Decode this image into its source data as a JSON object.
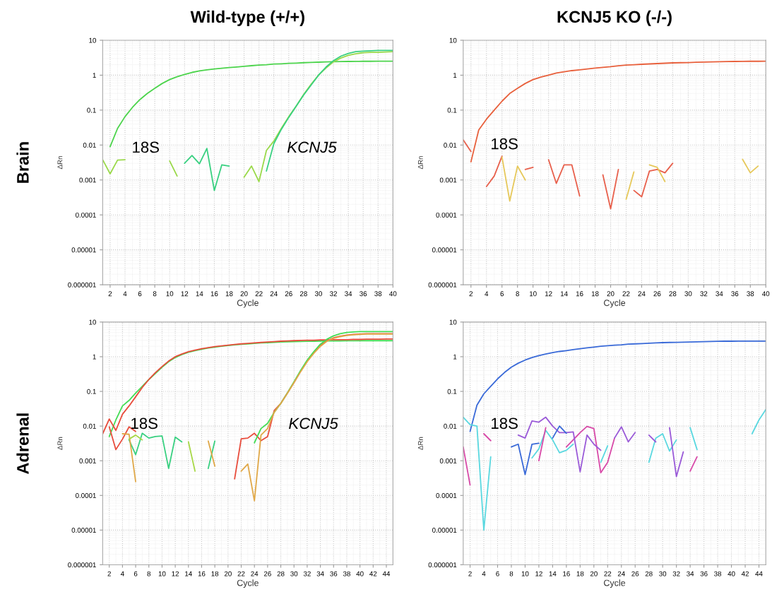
{
  "chart_data": [
    {
      "type": "line",
      "title": "Wild-type (+/+)",
      "xlabel": "Cycle",
      "ylabel": "ΔRn",
      "log": true,
      "grid": true,
      "xlim": [
        1,
        40
      ],
      "xticks": [
        2,
        4,
        6,
        8,
        10,
        12,
        14,
        16,
        18,
        20,
        22,
        24,
        26,
        28,
        30,
        32,
        34,
        36,
        38,
        40
      ],
      "ylim": [
        1e-06,
        10
      ],
      "yticks": [
        {
          "value": 1e-06,
          "label": "0.000001"
        },
        {
          "value": 1e-05,
          "label": "0.00001"
        },
        {
          "value": 0.0001,
          "label": "0.0001"
        },
        {
          "value": 0.001,
          "label": "0.001"
        },
        {
          "value": 0.01,
          "label": "0.01"
        },
        0.1,
        1,
        10
      ],
      "annotations": [
        "Brain",
        "18S",
        "KCNJ5"
      ],
      "series": [
        {
          "color": "#4cd44c",
          "x": [
            2,
            3,
            4,
            5,
            6,
            7,
            8,
            9,
            10,
            11,
            12,
            13,
            14,
            15,
            16,
            17,
            18,
            19,
            20,
            21,
            22,
            23,
            24,
            25,
            26,
            27,
            28,
            29,
            30,
            31,
            32,
            33,
            34,
            35,
            36,
            37,
            38,
            39,
            40
          ],
          "values": [
            0.009,
            0.03,
            0.065,
            0.12,
            0.2,
            0.3,
            0.42,
            0.58,
            0.75,
            0.9,
            1.05,
            1.2,
            1.32,
            1.42,
            1.5,
            1.58,
            1.65,
            1.72,
            1.8,
            1.87,
            1.95,
            2.0,
            2.08,
            2.12,
            2.18,
            2.22,
            2.28,
            2.32,
            2.36,
            2.4,
            2.42,
            2.45,
            2.47,
            2.48,
            2.5,
            2.5,
            2.52,
            2.52,
            2.52
          ]
        },
        {
          "color": "#9ad94a",
          "x": [
            1,
            2,
            3,
            4,
            5,
            10,
            11,
            12,
            20,
            21,
            22,
            23,
            24,
            25,
            26,
            27,
            28,
            29,
            30,
            31,
            32,
            33,
            34,
            35,
            36,
            37,
            38,
            39,
            40
          ],
          "values": [
            0.0038,
            0.0015,
            0.0037,
            0.0038,
            null,
            0.0035,
            0.0013,
            null,
            0.0012,
            0.0025,
            0.0009,
            0.007,
            0.013,
            0.03,
            0.065,
            0.13,
            0.28,
            0.55,
            1.0,
            1.6,
            2.4,
            3.1,
            3.7,
            4.1,
            4.4,
            4.5,
            4.5,
            4.6,
            4.7
          ]
        },
        {
          "color": "#38d080",
          "x": [
            12,
            13,
            14,
            15,
            16,
            17,
            18,
            19,
            23,
            24,
            25,
            26,
            27,
            28,
            29,
            30,
            31,
            32,
            33,
            34,
            35,
            36,
            37,
            38,
            39,
            40
          ],
          "values": [
            0.003,
            0.005,
            0.0029,
            0.008,
            0.0005,
            0.0027,
            0.0025,
            null,
            0.0018,
            0.011,
            0.028,
            0.062,
            0.13,
            0.27,
            0.52,
            1.0,
            1.7,
            2.6,
            3.5,
            4.2,
            4.7,
            4.9,
            5.0,
            5.1,
            5.1,
            5.1
          ]
        }
      ]
    },
    {
      "type": "line",
      "title": "KCNJ5 KO (-/-)",
      "xlabel": "Cycle",
      "ylabel": "ΔRn",
      "log": true,
      "grid": true,
      "xlim": [
        1,
        40
      ],
      "xticks": [
        2,
        4,
        6,
        8,
        10,
        12,
        14,
        16,
        18,
        20,
        22,
        24,
        26,
        28,
        30,
        32,
        34,
        36,
        38,
        40
      ],
      "ylim": [
        1e-06,
        10
      ],
      "yticks": [
        {
          "value": 1e-06,
          "label": "0.000001"
        },
        {
          "value": 1e-05,
          "label": "0.00001"
        },
        {
          "value": 0.0001,
          "label": "0.0001"
        },
        {
          "value": 0.001,
          "label": "0.001"
        },
        {
          "value": 0.01,
          "label": "0.01"
        },
        0.1,
        1,
        10
      ],
      "annotations": [
        "18S"
      ],
      "series": [
        {
          "color": "#e8603c",
          "x": [
            2,
            3,
            4,
            5,
            6,
            7,
            8,
            9,
            10,
            11,
            12,
            13,
            14,
            15,
            16,
            17,
            18,
            19,
            20,
            21,
            22,
            23,
            24,
            25,
            26,
            27,
            28,
            29,
            30,
            31,
            32,
            33,
            34,
            35,
            36,
            37,
            38,
            39,
            40
          ],
          "values": [
            0.0033,
            0.027,
            0.055,
            0.1,
            0.18,
            0.3,
            0.42,
            0.58,
            0.75,
            0.88,
            1.0,
            1.15,
            1.25,
            1.35,
            1.42,
            1.5,
            1.6,
            1.68,
            1.75,
            1.85,
            1.95,
            2.0,
            2.05,
            2.1,
            2.15,
            2.2,
            2.25,
            2.28,
            2.3,
            2.35,
            2.38,
            2.4,
            2.42,
            2.45,
            2.47,
            2.48,
            2.5,
            2.5,
            2.52
          ]
        },
        {
          "color": "#e8604c",
          "x": [
            1,
            2,
            3,
            4,
            5,
            6,
            7,
            9,
            10,
            11,
            12,
            13,
            14,
            15,
            16,
            17,
            19,
            20,
            21,
            22,
            23,
            24,
            25,
            26,
            27,
            28
          ],
          "values": [
            0.014,
            0.0065,
            null,
            0.00065,
            0.0013,
            0.0048,
            null,
            0.002,
            0.0023,
            null,
            0.0038,
            0.0008,
            0.0027,
            0.0027,
            0.00035,
            null,
            0.0014,
            0.00015,
            0.002,
            null,
            0.0005,
            0.00033,
            0.0018,
            0.002,
            0.0016,
            0.003
          ]
        },
        {
          "color": "#e6c85a",
          "x": [
            6,
            7,
            8,
            9,
            10,
            22,
            23,
            24,
            25,
            26,
            27,
            28,
            37,
            38,
            39
          ],
          "values": [
            0.0045,
            0.00025,
            0.0025,
            0.001,
            null,
            0.00028,
            0.0017,
            null,
            0.0027,
            0.0023,
            0.0009,
            null,
            0.0039,
            0.0016,
            0.0025
          ]
        }
      ]
    },
    {
      "type": "line",
      "xlabel": "Cycle",
      "ylabel": "ΔRn",
      "log": true,
      "grid": true,
      "xlim": [
        1,
        45
      ],
      "xticks": [
        2,
        4,
        6,
        8,
        10,
        12,
        14,
        16,
        18,
        20,
        22,
        24,
        26,
        28,
        30,
        32,
        34,
        36,
        38,
        40,
        42,
        44
      ],
      "ylim": [
        1e-06,
        10
      ],
      "yticks": [
        {
          "value": 1e-06,
          "label": "0.000001"
        },
        {
          "value": 1e-05,
          "label": "0.00001"
        },
        {
          "value": 0.0001,
          "label": "0.0001"
        },
        {
          "value": 0.001,
          "label": "0.001"
        },
        {
          "value": 0.01,
          "label": "0.01"
        },
        0.1,
        1,
        10
      ],
      "annotations": [
        "Adrenal",
        "18S",
        "KCNJ5"
      ],
      "series": [
        {
          "color": "#44dd55",
          "x": [
            2,
            3,
            4,
            5,
            6,
            7,
            8,
            9,
            10,
            11,
            12,
            13,
            14,
            15,
            16,
            17,
            18,
            19,
            20,
            21,
            22,
            23,
            24,
            25,
            26,
            27,
            28,
            29,
            30,
            31,
            32,
            33,
            34,
            35,
            36,
            37,
            38,
            39,
            40,
            41,
            42,
            43,
            44,
            45
          ],
          "values": [
            0.005,
            0.015,
            0.038,
            0.055,
            0.09,
            0.14,
            0.22,
            0.33,
            0.5,
            0.72,
            0.95,
            1.15,
            1.35,
            1.5,
            1.65,
            1.78,
            1.9,
            2.0,
            2.1,
            2.2,
            2.28,
            2.35,
            2.42,
            2.5,
            2.55,
            2.6,
            2.65,
            2.7,
            2.72,
            2.75,
            2.78,
            2.8,
            2.82,
            2.85,
            2.85,
            2.87,
            2.88,
            2.88,
            2.9,
            2.9,
            2.9,
            2.9,
            2.9,
            2.9
          ]
        },
        {
          "color": "#e84c3c",
          "x": [
            1,
            2,
            3,
            4,
            5,
            6,
            7,
            8,
            9,
            10,
            11,
            12,
            13,
            14,
            15,
            16,
            17,
            18,
            19,
            20,
            21,
            22,
            23,
            24,
            25,
            26,
            27,
            28,
            29,
            30,
            31,
            32,
            33,
            34,
            35,
            36,
            37,
            38,
            39,
            40,
            41,
            42,
            43,
            44,
            45
          ],
          "values": [
            0.006,
            0.016,
            0.0075,
            0.022,
            0.038,
            0.07,
            0.13,
            0.22,
            0.35,
            0.52,
            0.75,
            1.0,
            1.2,
            1.4,
            1.55,
            1.7,
            1.82,
            1.95,
            2.05,
            2.15,
            2.25,
            2.35,
            2.42,
            2.5,
            2.58,
            2.65,
            2.72,
            2.8,
            2.85,
            2.9,
            2.95,
            3.0,
            3.0,
            3.05,
            3.05,
            3.1,
            3.1,
            3.1,
            3.15,
            3.15,
            3.2,
            3.2,
            3.2,
            3.25,
            3.25
          ]
        },
        {
          "color": "#e84c3c",
          "x": [
            21,
            22,
            23,
            24,
            25,
            26,
            27,
            28,
            29,
            30,
            31,
            32,
            33,
            34,
            35,
            36,
            37,
            38,
            39,
            40,
            41,
            42,
            43,
            44,
            45
          ],
          "values": [
            0.0003,
            0.0043,
            0.0045,
            0.0062,
            0.0038,
            0.005,
            0.028,
            0.045,
            0.09,
            0.18,
            0.38,
            0.75,
            1.3,
            2.1,
            2.9,
            3.5,
            3.9,
            4.2,
            4.4,
            4.5,
            4.6,
            4.6,
            4.6,
            4.6,
            4.6
          ]
        },
        {
          "color": "#44dd55",
          "x": [
            24,
            25,
            26,
            27,
            28,
            29,
            30,
            31,
            32,
            33,
            34,
            35,
            36,
            37,
            38,
            39,
            40,
            41,
            42,
            43,
            44,
            45
          ],
          "values": [
            0.0033,
            0.0085,
            0.012,
            0.025,
            0.045,
            0.09,
            0.19,
            0.4,
            0.8,
            1.4,
            2.3,
            3.2,
            4.0,
            4.6,
            5.0,
            5.2,
            5.3,
            5.3,
            5.3,
            5.3,
            5.3,
            5.3
          ]
        },
        {
          "color": "#e0a848",
          "x": [
            22,
            23,
            24,
            25,
            26,
            27,
            28,
            29,
            30,
            31,
            32,
            33,
            34,
            35,
            36,
            37,
            38,
            39,
            40,
            41,
            42,
            43,
            44,
            45
          ],
          "values": [
            0.0005,
            0.0008,
            7e-05,
            0.0055,
            0.0085,
            0.025,
            0.045,
            0.088,
            0.18,
            0.37,
            0.72,
            1.25,
            2.0,
            2.8,
            3.4,
            3.8,
            4.1,
            4.3,
            4.4,
            4.5,
            4.5,
            4.5,
            4.5,
            4.5
          ]
        },
        {
          "color": "#38d080",
          "x": [
            5,
            6,
            7,
            8,
            9,
            10,
            11,
            12,
            13,
            14,
            17,
            18
          ],
          "values": [
            0.004,
            0.0015,
            0.0062,
            0.0045,
            0.005,
            0.0052,
            0.0006,
            0.0048,
            0.0035,
            null,
            0.0006,
            0.0037
          ]
        },
        {
          "color": "#e84c3c",
          "x": [
            2,
            3,
            4,
            5,
            6
          ],
          "values": [
            0.0095,
            0.0021,
            0.0042,
            0.0095,
            0.007
          ]
        },
        {
          "color": "#e0a848",
          "x": [
            4,
            5,
            6,
            7,
            17,
            18
          ],
          "values": [
            0.006,
            0.0058,
            0.00025,
            null,
            0.0037,
            0.0007
          ]
        },
        {
          "color": "#a8d848",
          "x": [
            5,
            6,
            7,
            8,
            14,
            15
          ],
          "values": [
            0.0042,
            0.0055,
            0.004,
            null,
            0.0035,
            0.0005
          ]
        }
      ]
    },
    {
      "type": "line",
      "xlabel": "Cycle",
      "ylabel": "ΔRn",
      "log": true,
      "grid": true,
      "xlim": [
        1,
        45
      ],
      "xticks": [
        2,
        4,
        6,
        8,
        10,
        12,
        14,
        16,
        18,
        20,
        22,
        24,
        26,
        28,
        30,
        32,
        34,
        36,
        38,
        40,
        42,
        44
      ],
      "ylim": [
        1e-06,
        10
      ],
      "yticks": [
        {
          "value": 1e-06,
          "label": "0.000001"
        },
        {
          "value": 1e-05,
          "label": "0.00001"
        },
        {
          "value": 0.0001,
          "label": "0.0001"
        },
        {
          "value": 0.001,
          "label": "0.001"
        },
        {
          "value": 0.01,
          "label": "0.01"
        },
        0.1,
        1,
        10
      ],
      "annotations": [
        "18S"
      ],
      "series": [
        {
          "color": "#3a6ad8",
          "x": [
            2,
            3,
            4,
            5,
            6,
            7,
            8,
            9,
            10,
            11,
            12,
            13,
            14,
            15,
            16,
            17,
            18,
            19,
            20,
            21,
            22,
            23,
            24,
            25,
            26,
            27,
            28,
            29,
            30,
            31,
            32,
            33,
            34,
            35,
            36,
            37,
            38,
            39,
            40,
            41,
            42,
            43,
            44,
            45
          ],
          "values": [
            0.007,
            0.04,
            0.085,
            0.14,
            0.23,
            0.35,
            0.5,
            0.65,
            0.8,
            0.95,
            1.08,
            1.2,
            1.32,
            1.42,
            1.5,
            1.6,
            1.7,
            1.8,
            1.9,
            2.0,
            2.08,
            2.15,
            2.2,
            2.3,
            2.35,
            2.4,
            2.45,
            2.5,
            2.55,
            2.58,
            2.6,
            2.62,
            2.65,
            2.7,
            2.72,
            2.75,
            2.78,
            2.8,
            2.8,
            2.82,
            2.82,
            2.82,
            2.82,
            2.82
          ]
        },
        {
          "color": "#5ad8e0",
          "x": [
            1,
            2,
            3,
            4,
            5,
            6,
            11,
            12,
            13,
            14,
            15,
            16,
            17,
            18,
            21,
            22,
            23,
            28,
            29,
            30,
            31,
            32,
            33,
            34,
            35,
            36,
            43,
            44,
            45
          ],
          "values": [
            0.018,
            0.011,
            0.01,
            1e-05,
            0.0013,
            null,
            0.0012,
            0.0022,
            0.0075,
            0.004,
            0.0017,
            0.002,
            0.003,
            null,
            0.0009,
            0.0027,
            null,
            0.0009,
            0.0045,
            0.006,
            0.0019,
            0.004,
            null,
            0.009,
            0.0021,
            null,
            0.006,
            0.015,
            0.03
          ]
        },
        {
          "color": "#d84aa8",
          "x": [
            1,
            2,
            3,
            4,
            5,
            6,
            12,
            13,
            14,
            16,
            17,
            18,
            19,
            20,
            21,
            22,
            23,
            24,
            34,
            35
          ],
          "values": [
            0.0025,
            0.0002,
            null,
            0.006,
            0.0038,
            null,
            0.001,
            0.009,
            null,
            0.0025,
            0.004,
            0.0065,
            0.0098,
            0.0085,
            0.00045,
            0.0009,
            0.0045,
            null,
            0.0005,
            0.0013
          ]
        },
        {
          "color": "#9a5ad8",
          "x": [
            9,
            10,
            11,
            12,
            13,
            14,
            15,
            16,
            17,
            18,
            19,
            20,
            21,
            22,
            23,
            24,
            25,
            26,
            27,
            28,
            29,
            30,
            31,
            32,
            33
          ],
          "values": [
            0.0055,
            0.0045,
            0.014,
            0.013,
            0.018,
            0.01,
            0.0065,
            0.0065,
            0.0068,
            0.00048,
            0.0055,
            0.003,
            0.002,
            null,
            0.0045,
            0.0095,
            0.0035,
            0.0065,
            null,
            0.0055,
            0.0035,
            null,
            0.009,
            0.00035,
            0.0018
          ]
        },
        {
          "color": "#3a6ad8",
          "x": [
            8,
            9,
            10,
            11,
            12,
            13,
            14,
            15,
            16
          ],
          "values": [
            0.0025,
            0.003,
            0.0004,
            0.003,
            0.0032,
            null,
            0.0045,
            0.01,
            0.0062
          ]
        }
      ]
    }
  ]
}
